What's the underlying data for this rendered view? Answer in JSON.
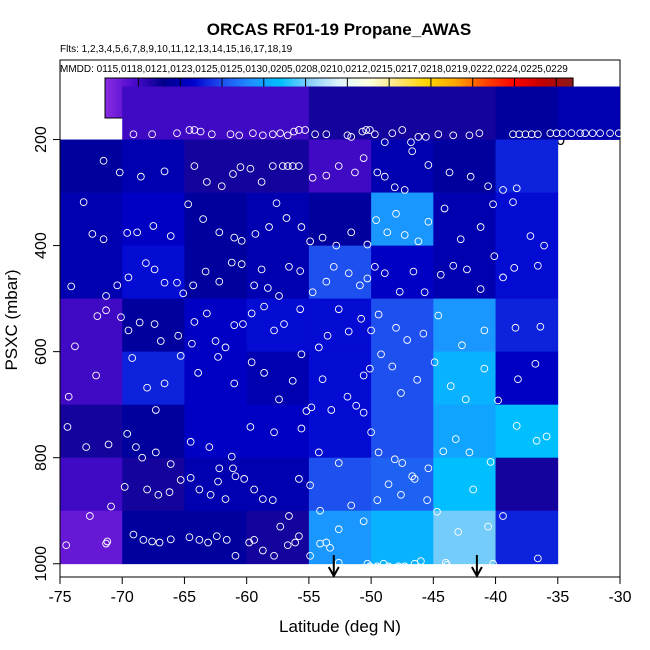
{
  "chart_data": {
    "type": "heatmap",
    "title": "ORCAS RF01-19 Propane_AWAS",
    "flights_label": "Flts: 1,2,3,4,5,6,7,8,9,10,11,12,13,14,15,16,17,18,19",
    "dates_label": "MMDD: 0115,0118,0121,0123,0125,0125,0130,0205,0208,0210,0212,0215,0217,0218,0219,0222,0224,0225,0229",
    "xlabel": "Latitude (deg N)",
    "ylabel": "PSXC (mbar)",
    "xlim": [
      -75,
      -30
    ],
    "ylim": [
      1025,
      50
    ],
    "x_ticks": [
      -75,
      -70,
      -65,
      -60,
      -55,
      -50,
      -45,
      -40,
      -35,
      -30
    ],
    "y_ticks": [
      200,
      400,
      600,
      800,
      1000
    ],
    "colorbar": {
      "range": [
        6,
        62
      ],
      "ticks": [
        10,
        15,
        20,
        25,
        30,
        35,
        40,
        45,
        50,
        55,
        60
      ],
      "colors": [
        "#8a2be2",
        "#4b0acc",
        "#00008b",
        "#0000cd",
        "#1e50f0",
        "#1e90ff",
        "#00bfff",
        "#87cefa",
        "#e0f4ff",
        "#ffffe0",
        "#ffe57a",
        "#ffd700",
        "#ffa500",
        "#ff4500",
        "#ff0000",
        "#c00000",
        "#8b1a1a"
      ]
    },
    "lat_edges": [
      -75,
      -70,
      -65,
      -60,
      -55,
      -50,
      -45,
      -40,
      -35
    ],
    "p_edges": [
      100,
      200,
      300,
      400,
      500,
      600,
      700,
      800,
      900,
      1000
    ],
    "grid_values": [
      [
        null,
        10,
        10,
        10,
        12,
        12,
        12,
        14,
        14
      ],
      [
        14,
        15,
        12,
        12,
        10,
        15,
        14,
        18,
        22
      ],
      [
        15,
        16,
        14,
        15,
        14,
        24,
        15,
        17,
        15
      ],
      [
        15,
        17,
        14,
        15,
        20,
        16,
        15,
        17,
        16
      ],
      [
        10,
        14,
        16,
        17,
        17,
        20,
        24,
        18,
        18
      ],
      [
        10,
        18,
        16,
        15,
        17,
        20,
        26,
        16,
        10
      ],
      [
        12,
        14,
        16,
        16,
        17,
        20,
        25,
        27,
        42
      ],
      [
        10,
        12,
        15,
        15,
        20,
        21,
        27,
        12,
        60
      ],
      [
        8,
        14,
        14,
        12,
        24,
        26,
        30,
        18,
        15
      ]
    ],
    "extra_cell": {
      "lat": [
        -35,
        -30
      ],
      "p": [
        100,
        200
      ],
      "value": 15
    },
    "arrows": [
      -53,
      -41.5
    ],
    "observations": [
      [
        -74.5,
        965
      ],
      [
        -71.3,
        962
      ],
      [
        -71.2,
        958
      ],
      [
        -69.1,
        945
      ],
      [
        -68.3,
        955
      ],
      [
        -67.6,
        958
      ],
      [
        -67.0,
        960
      ],
      [
        -66.1,
        954
      ],
      [
        -64.6,
        950
      ],
      [
        -63.8,
        955
      ],
      [
        -63.1,
        960
      ],
      [
        -62.4,
        948
      ],
      [
        -61.6,
        955
      ],
      [
        -60.9,
        985
      ],
      [
        -59.8,
        960
      ],
      [
        -59.4,
        955
      ],
      [
        -58.7,
        975
      ],
      [
        -57.8,
        985
      ],
      [
        -56.7,
        965
      ],
      [
        -55.8,
        948
      ],
      [
        -54.9,
        985
      ],
      [
        -54.1,
        962
      ],
      [
        -53.6,
        960
      ],
      [
        -53.3,
        970
      ],
      [
        -52.6,
        998
      ],
      [
        -50.3,
        1000
      ],
      [
        -50.1,
        1005
      ],
      [
        -49.5,
        1005
      ],
      [
        -49.0,
        1000
      ],
      [
        -48.6,
        1005
      ],
      [
        -48.1,
        1008
      ],
      [
        -47.8,
        1005
      ],
      [
        -47.3,
        1005
      ],
      [
        -46.5,
        1000
      ],
      [
        -46.0,
        995
      ],
      [
        -44.0,
        998
      ],
      [
        -43.9,
        1002
      ],
      [
        -40.2,
        1000
      ],
      [
        -36.6,
        990
      ],
      [
        -72.6,
        910
      ],
      [
        -70.9,
        892
      ],
      [
        -69.8,
        855
      ],
      [
        -68.0,
        860
      ],
      [
        -67.1,
        870
      ],
      [
        -66.2,
        865
      ],
      [
        -65.3,
        842
      ],
      [
        -64.5,
        838
      ],
      [
        -63.8,
        860
      ],
      [
        -62.9,
        870
      ],
      [
        -62.3,
        845
      ],
      [
        -61.7,
        878
      ],
      [
        -61.1,
        820
      ],
      [
        -60.9,
        835
      ],
      [
        -60.2,
        840
      ],
      [
        -59.4,
        860
      ],
      [
        -58.7,
        878
      ],
      [
        -57.9,
        880
      ],
      [
        -57.3,
        930
      ],
      [
        -56.6,
        910
      ],
      [
        -56.1,
        960
      ],
      [
        -55.8,
        840
      ],
      [
        -54.9,
        852
      ],
      [
        -54.1,
        900
      ],
      [
        -52.6,
        935
      ],
      [
        -51.6,
        890
      ],
      [
        -50.6,
        920
      ],
      [
        -49.5,
        880
      ],
      [
        -48.6,
        850
      ],
      [
        -47.6,
        870
      ],
      [
        -46.7,
        835
      ],
      [
        -45.5,
        880
      ],
      [
        -44.7,
        902
      ],
      [
        -43.0,
        940
      ],
      [
        -41.8,
        860
      ],
      [
        -40.6,
        930
      ],
      [
        -39.4,
        910
      ],
      [
        -74.4,
        742
      ],
      [
        -72.9,
        780
      ],
      [
        -71.1,
        775
      ],
      [
        -69.6,
        755
      ],
      [
        -68.9,
        780
      ],
      [
        -68.4,
        800
      ],
      [
        -67.3,
        790
      ],
      [
        -66.1,
        812
      ],
      [
        -64.5,
        770
      ],
      [
        -63.0,
        780
      ],
      [
        -62.2,
        820
      ],
      [
        -61.2,
        798
      ],
      [
        -59.7,
        742
      ],
      [
        -57.8,
        752
      ],
      [
        -55.6,
        745
      ],
      [
        -55.2,
        712
      ],
      [
        -54.2,
        790
      ],
      [
        -52.6,
        810
      ],
      [
        -51.2,
        702
      ],
      [
        -50.6,
        715
      ],
      [
        -50.0,
        752
      ],
      [
        -49.4,
        790
      ],
      [
        -48.1,
        803
      ],
      [
        -47.5,
        810
      ],
      [
        -46.5,
        840
      ],
      [
        -45.4,
        820
      ],
      [
        -44.2,
        788
      ],
      [
        -43.2,
        765
      ],
      [
        -42.1,
        790
      ],
      [
        -40.4,
        808
      ],
      [
        -38.3,
        740
      ],
      [
        -36.7,
        768
      ],
      [
        -35.9,
        760
      ],
      [
        -74.3,
        685
      ],
      [
        -72.1,
        645
      ],
      [
        -69.2,
        612
      ],
      [
        -68.0,
        668
      ],
      [
        -67.3,
        710
      ],
      [
        -66.6,
        660
      ],
      [
        -65.3,
        608
      ],
      [
        -64.4,
        585
      ],
      [
        -63.9,
        640
      ],
      [
        -62.3,
        610
      ],
      [
        -61.0,
        660
      ],
      [
        -59.6,
        620
      ],
      [
        -58.6,
        640
      ],
      [
        -57.4,
        690
      ],
      [
        -56.3,
        655
      ],
      [
        -55.6,
        605
      ],
      [
        -54.8,
        705
      ],
      [
        -53.9,
        652
      ],
      [
        -53.2,
        710
      ],
      [
        -51.9,
        685
      ],
      [
        -50.6,
        645
      ],
      [
        -50.1,
        632
      ],
      [
        -49.2,
        605
      ],
      [
        -48.3,
        628
      ],
      [
        -47.6,
        678
      ],
      [
        -46.3,
        653
      ],
      [
        -44.9,
        620
      ],
      [
        -43.6,
        665
      ],
      [
        -42.4,
        690
      ],
      [
        -40.9,
        632
      ],
      [
        -39.8,
        692
      ],
      [
        -38.2,
        652
      ],
      [
        -36.8,
        623
      ],
      [
        -73.8,
        590
      ],
      [
        -72.0,
        533
      ],
      [
        -71.3,
        522
      ],
      [
        -70.1,
        535
      ],
      [
        -69.5,
        560
      ],
      [
        -68.6,
        545
      ],
      [
        -67.4,
        548
      ],
      [
        -66.9,
        580
      ],
      [
        -65.5,
        570
      ],
      [
        -64.2,
        544
      ],
      [
        -63.2,
        528
      ],
      [
        -62.5,
        580
      ],
      [
        -61.7,
        592
      ],
      [
        -61.0,
        550
      ],
      [
        -60.3,
        548
      ],
      [
        -59.6,
        528
      ],
      [
        -58.6,
        515
      ],
      [
        -57.8,
        560
      ],
      [
        -57.0,
        548
      ],
      [
        -55.7,
        520
      ],
      [
        -54.2,
        592
      ],
      [
        -53.5,
        570
      ],
      [
        -52.6,
        520
      ],
      [
        -51.8,
        562
      ],
      [
        -50.8,
        538
      ],
      [
        -50.0,
        560
      ],
      [
        -49.4,
        530
      ],
      [
        -48.0,
        555
      ],
      [
        -47.1,
        578
      ],
      [
        -45.8,
        566
      ],
      [
        -44.6,
        532
      ],
      [
        -42.7,
        588
      ],
      [
        -40.9,
        560
      ],
      [
        -38.4,
        555
      ],
      [
        -36.4,
        553
      ],
      [
        -74.1,
        477
      ],
      [
        -71.3,
        495
      ],
      [
        -70.4,
        475
      ],
      [
        -69.5,
        460
      ],
      [
        -68.1,
        433
      ],
      [
        -67.4,
        445
      ],
      [
        -66.6,
        470
      ],
      [
        -65.6,
        470
      ],
      [
        -65.1,
        490
      ],
      [
        -64.3,
        475
      ],
      [
        -63.3,
        449
      ],
      [
        -62.2,
        468
      ],
      [
        -61.2,
        432
      ],
      [
        -60.4,
        435
      ],
      [
        -59.4,
        475
      ],
      [
        -58.8,
        445
      ],
      [
        -58.3,
        480
      ],
      [
        -57.4,
        495
      ],
      [
        -56.6,
        440
      ],
      [
        -55.7,
        448
      ],
      [
        -54.7,
        488
      ],
      [
        -53.6,
        468
      ],
      [
        -53.0,
        440
      ],
      [
        -51.8,
        452
      ],
      [
        -50.9,
        475
      ],
      [
        -50.3,
        462
      ],
      [
        -49.7,
        440
      ],
      [
        -48.9,
        452
      ],
      [
        -47.7,
        487
      ],
      [
        -46.6,
        449
      ],
      [
        -45.7,
        488
      ],
      [
        -44.4,
        455
      ],
      [
        -43.4,
        438
      ],
      [
        -42.3,
        445
      ],
      [
        -41.2,
        482
      ],
      [
        -40.1,
        420
      ],
      [
        -39.4,
        460
      ],
      [
        -38.5,
        442
      ],
      [
        -36.6,
        438
      ],
      [
        -73.1,
        318
      ],
      [
        -72.4,
        378
      ],
      [
        -71.5,
        388
      ],
      [
        -69.6,
        376
      ],
      [
        -68.8,
        375
      ],
      [
        -67.5,
        363
      ],
      [
        -66.1,
        382
      ],
      [
        -64.7,
        322
      ],
      [
        -63.5,
        350
      ],
      [
        -62.2,
        375
      ],
      [
        -61.0,
        385
      ],
      [
        -60.4,
        391
      ],
      [
        -59.3,
        378
      ],
      [
        -58.2,
        365
      ],
      [
        -57.6,
        320
      ],
      [
        -56.8,
        348
      ],
      [
        -55.6,
        365
      ],
      [
        -54.9,
        392
      ],
      [
        -53.9,
        385
      ],
      [
        -52.8,
        400
      ],
      [
        -51.6,
        375
      ],
      [
        -50.3,
        398
      ],
      [
        -49.6,
        352
      ],
      [
        -48.7,
        375
      ],
      [
        -48.0,
        340
      ],
      [
        -47.3,
        380
      ],
      [
        -46.2,
        392
      ],
      [
        -45.4,
        355
      ],
      [
        -44.1,
        330
      ],
      [
        -42.8,
        388
      ],
      [
        -41.2,
        365
      ],
      [
        -40.2,
        322
      ],
      [
        -38.6,
        318
      ],
      [
        -37.2,
        382
      ],
      [
        -36.1,
        400
      ],
      [
        -71.5,
        240
      ],
      [
        -70.2,
        262
      ],
      [
        -68.5,
        270
      ],
      [
        -66.6,
        260
      ],
      [
        -64.2,
        250
      ],
      [
        -63.2,
        280
      ],
      [
        -62.0,
        288
      ],
      [
        -61.1,
        265
      ],
      [
        -60.5,
        252
      ],
      [
        -59.7,
        255
      ],
      [
        -58.8,
        280
      ],
      [
        -57.9,
        250
      ],
      [
        -57.1,
        250
      ],
      [
        -56.7,
        250
      ],
      [
        -56.3,
        250
      ],
      [
        -55.8,
        250
      ],
      [
        -54.7,
        272
      ],
      [
        -53.6,
        268
      ],
      [
        -52.6,
        250
      ],
      [
        -51.3,
        262
      ],
      [
        -50.6,
        235
      ],
      [
        -49.5,
        262
      ],
      [
        -48.9,
        270
      ],
      [
        -48.1,
        290
      ],
      [
        -47.3,
        295
      ],
      [
        -46.7,
        222
      ],
      [
        -45.4,
        248
      ],
      [
        -43.7,
        262
      ],
      [
        -42.0,
        270
      ],
      [
        -40.6,
        288
      ],
      [
        -39.4,
        295
      ],
      [
        -38.3,
        292
      ],
      [
        -69.1,
        190
      ],
      [
        -67.6,
        190
      ],
      [
        -65.6,
        188
      ],
      [
        -64.6,
        182
      ],
      [
        -64.2,
        182
      ],
      [
        -63.7,
        185
      ],
      [
        -62.8,
        190
      ],
      [
        -61.3,
        190
      ],
      [
        -60.6,
        192
      ],
      [
        -59.5,
        188
      ],
      [
        -58.7,
        192
      ],
      [
        -57.9,
        190
      ],
      [
        -57.3,
        188
      ],
      [
        -56.7,
        192
      ],
      [
        -56.2,
        185
      ],
      [
        -55.8,
        182
      ],
      [
        -55.3,
        182
      ],
      [
        -54.5,
        190
      ],
      [
        -53.6,
        190
      ],
      [
        -51.9,
        192
      ],
      [
        -51.6,
        195
      ],
      [
        -50.7,
        185
      ],
      [
        -50.4,
        182
      ],
      [
        -50.1,
        182
      ],
      [
        -49.7,
        190
      ],
      [
        -48.9,
        205
      ],
      [
        -48.3,
        188
      ],
      [
        -47.5,
        182
      ],
      [
        -46.8,
        205
      ],
      [
        -46.2,
        195
      ],
      [
        -45.6,
        195
      ],
      [
        -44.6,
        190
      ],
      [
        -43.4,
        192
      ],
      [
        -42.1,
        192
      ],
      [
        -41.3,
        188
      ],
      [
        -38.6,
        190
      ],
      [
        -38.1,
        190
      ],
      [
        -37.6,
        190
      ],
      [
        -37.1,
        190
      ],
      [
        -36.6,
        190
      ],
      [
        -35.6,
        188
      ],
      [
        -35.1,
        188
      ],
      [
        -34.6,
        188
      ],
      [
        -33.9,
        188
      ],
      [
        -33.2,
        188
      ],
      [
        -32.8,
        188
      ],
      [
        -32.2,
        188
      ],
      [
        -31.6,
        188
      ],
      [
        -30.8,
        188
      ],
      [
        -30.1,
        188
      ]
    ]
  }
}
